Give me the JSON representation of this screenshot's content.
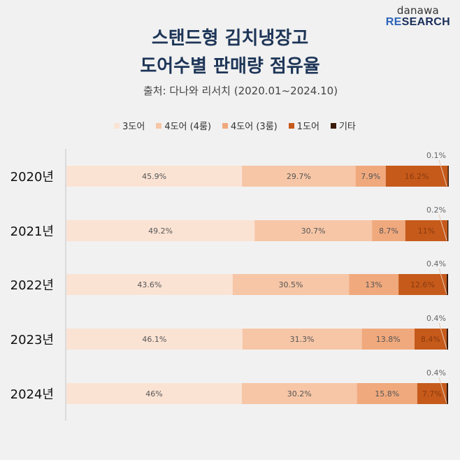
{
  "logo": {
    "top": "danawa",
    "bottom_re": "RE",
    "bottom_rest": "SEARCH"
  },
  "header": {
    "title_line1": "스탠드형 김치냉장고",
    "title_line2": "도어수별 판매량 점유율",
    "subtitle": "출처: 다나와 리서치 (2020.01~2024.10)"
  },
  "chart_data": {
    "type": "bar",
    "orientation": "horizontal",
    "stacked": true,
    "title": "스탠드형 김치냉장고 도어수별 판매량 점유율",
    "subtitle": "출처: 다나와 리서치 (2020.01~2024.10)",
    "categories": [
      "2020년",
      "2021년",
      "2022년",
      "2023년",
      "2024년"
    ],
    "series": [
      {
        "name": "3도어",
        "color": "#fbe3d4",
        "values": [
          45.9,
          49.2,
          43.6,
          46.1,
          46
        ],
        "labels": [
          "45.9%",
          "49.2%",
          "43.6%",
          "46.1%",
          "46%"
        ]
      },
      {
        "name": "4도어 (4룸)",
        "color": "#f7c6a6",
        "values": [
          29.7,
          30.7,
          30.5,
          31.3,
          30.2
        ],
        "labels": [
          "29.7%",
          "30.7%",
          "30.5%",
          "31.3%",
          "30.2%"
        ]
      },
      {
        "name": "4도어 (3룸)",
        "color": "#f0a97d",
        "values": [
          7.9,
          8.7,
          13,
          13.8,
          15.8
        ],
        "labels": [
          "7.9%",
          "8.7%",
          "13%",
          "13.8%",
          "15.8%"
        ]
      },
      {
        "name": "1도어",
        "color": "#c65a1a",
        "values": [
          16.2,
          11,
          12.6,
          8.4,
          7.7
        ],
        "labels": [
          "16.2%",
          "11%",
          "12.6%",
          "8.4%",
          "7.7%"
        ]
      },
      {
        "name": "기타",
        "color": "#3a1a0a",
        "values": [
          0.1,
          0.2,
          0.4,
          0.4,
          0.4
        ],
        "labels": [
          "0.1%",
          "0.2%",
          "0.4%",
          "0.4%",
          "0.4%"
        ]
      }
    ],
    "xlim": [
      0,
      100
    ],
    "legend_position": "top-center",
    "grid": false
  }
}
